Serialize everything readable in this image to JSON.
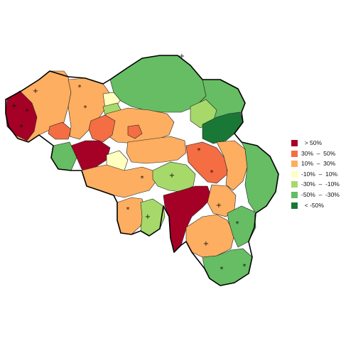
{
  "colors": {
    "gt50": "#a50026",
    "p30_50": "#f46d43",
    "p10_30": "#fdae61",
    "m10_10": "#ffffbf",
    "m30_m10": "#a6d96a",
    "m50_m30": "#66bd63",
    "lt_m50": "#1a7837"
  },
  "legend": {
    "items": [
      {
        "label": "  > 50%",
        "color": "#a50026"
      },
      {
        "label": "30%  –  50%",
        "color": "#f46d43"
      },
      {
        "label": "10%  –  30%",
        "color": "#fdae61"
      },
      {
        "label": "-10%  –  10%",
        "color": "#ffffbf"
      },
      {
        "label": "-30%  –  -10%",
        "color": "#a6d96a"
      },
      {
        "label": "-50%  –  -30%",
        "color": "#66bd63"
      },
      {
        "label": "  < -50%",
        "color": "#1a7837"
      }
    ]
  },
  "markers": {
    "plus": "+",
    "star": "*"
  }
}
